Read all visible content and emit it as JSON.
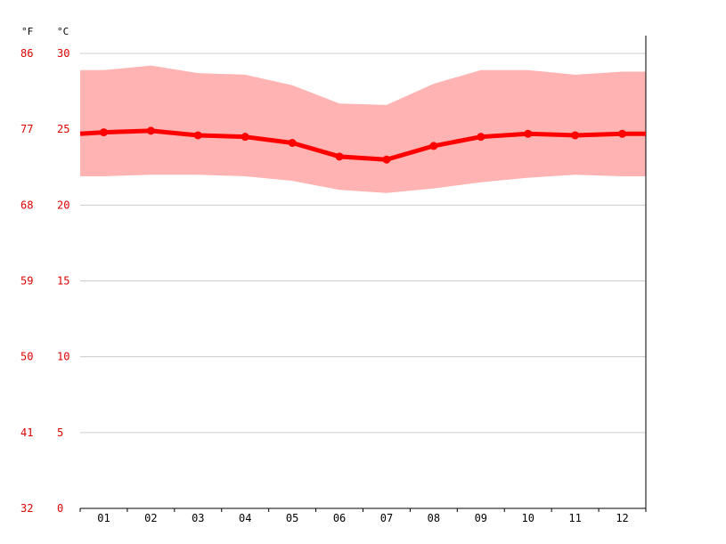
{
  "chart_data": {
    "type": "line",
    "categories": [
      "01",
      "02",
      "03",
      "04",
      "05",
      "06",
      "07",
      "08",
      "09",
      "10",
      "11",
      "12"
    ],
    "series": [
      {
        "values": [
          24.8,
          24.9,
          24.6,
          24.5,
          24.1,
          23.2,
          23.0,
          23.9,
          24.5,
          24.7,
          24.6,
          24.7
        ]
      }
    ],
    "range_band": {
      "max": [
        28.9,
        29.2,
        28.7,
        28.6,
        27.9,
        26.7,
        26.6,
        28.0,
        28.9,
        28.9,
        28.6,
        28.8
      ],
      "min": [
        21.9,
        22.0,
        22.0,
        21.9,
        21.6,
        21.0,
        20.8,
        21.1,
        21.5,
        21.8,
        22.0,
        21.9
      ]
    },
    "y_celsius_ticks": [
      "0",
      "5",
      "10",
      "15",
      "20",
      "25",
      "30"
    ],
    "y_fahrenheit_ticks": [
      "32",
      "41",
      "50",
      "59",
      "68",
      "77",
      "86"
    ],
    "unit_fahrenheit": "°F",
    "unit_celsius": "°C",
    "ylim": [
      0,
      30
    ],
    "grid": true,
    "colors": {
      "line": "#ff0000",
      "band": "#ffb3b3",
      "grid": "#cccccc",
      "axis": "#000000",
      "tick_label_y": "#dd0000",
      "tick_label_x": "#000000"
    }
  }
}
